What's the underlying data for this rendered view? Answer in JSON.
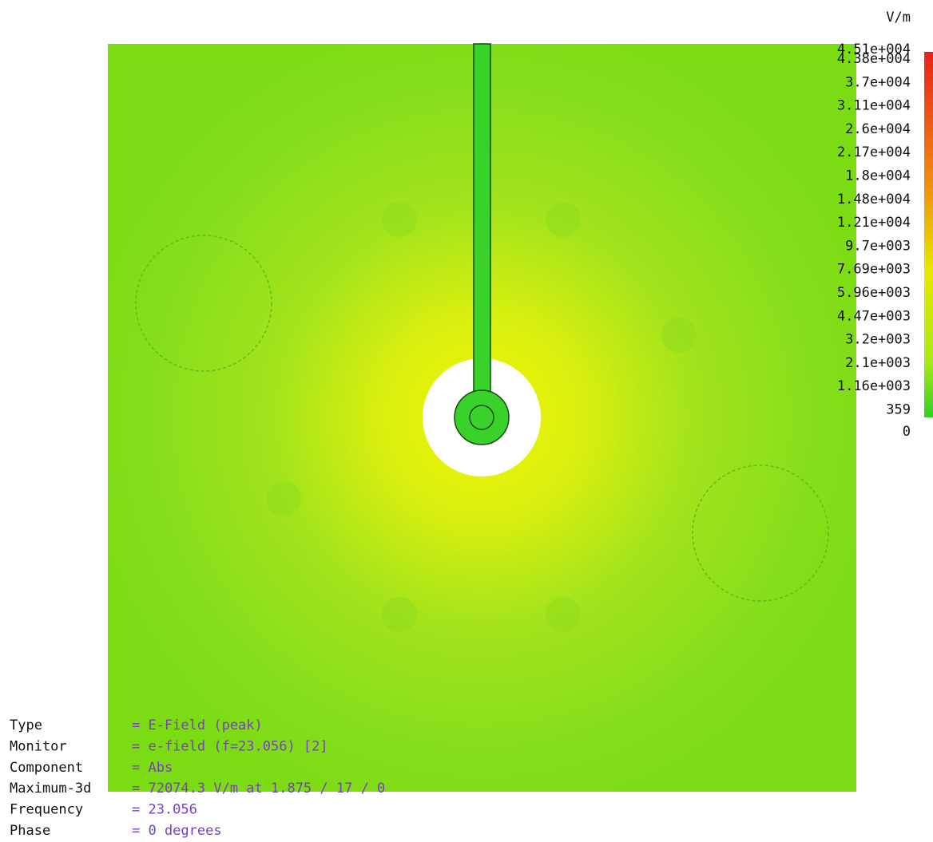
{
  "colorbar": {
    "unit": "V/m",
    "labels": [
      "4.51e+004",
      "4.38e+004",
      "3.7e+004",
      "3.11e+004",
      "2.6e+004",
      "2.17e+004",
      "1.8e+004",
      "1.48e+004",
      "1.21e+004",
      "9.7e+003",
      "7.69e+003",
      "5.96e+003",
      "4.47e+003",
      "3.2e+003",
      "2.1e+003",
      "1.16e+003",
      "359",
      "0"
    ]
  },
  "info": {
    "rows": [
      [
        "Type",
        "= E-Field (peak)"
      ],
      [
        "Monitor",
        "= e-field (f=23.056) [2]"
      ],
      [
        "Component",
        "= Abs"
      ],
      [
        "Maximum-3d",
        "= 72074.3 V/m at 1.875 / 17 / 0"
      ],
      [
        "Frequency",
        "= 23.056"
      ],
      [
        "Phase",
        "= 0 degrees"
      ]
    ]
  }
}
